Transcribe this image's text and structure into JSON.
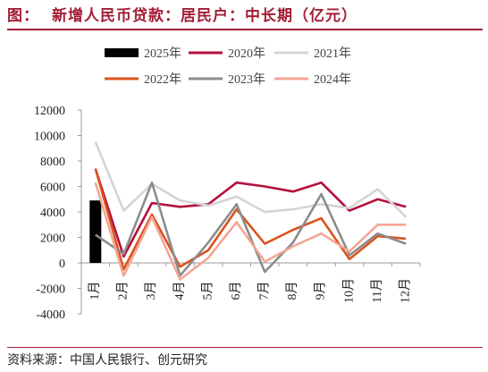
{
  "header": {
    "label": "图：",
    "title": "新增人民币贷款：居民户：中长期（亿元）"
  },
  "footer": {
    "source": "资料来源：中国人民银行、创元研究"
  },
  "chart_data": {
    "type": "line",
    "categories": [
      "1月",
      "2月",
      "3月",
      "4月",
      "5月",
      "6月",
      "7月",
      "8月",
      "9月",
      "10月",
      "11月",
      "12月"
    ],
    "ylim": [
      -4000,
      12000
    ],
    "yticks": [
      12000,
      10000,
      8000,
      6000,
      4000,
      2000,
      0,
      -2000,
      -4000
    ],
    "grid": false,
    "legend_position": "top",
    "series": [
      {
        "name": "2025年",
        "type": "bar",
        "color": "#000000",
        "values": [
          4900,
          null,
          null,
          null,
          null,
          null,
          null,
          null,
          null,
          null,
          null,
          null
        ]
      },
      {
        "name": "2020年",
        "type": "line",
        "color": "#b5103c",
        "values": [
          7400,
          500,
          4700,
          4400,
          4600,
          6300,
          6000,
          5600,
          6300,
          4100,
          5000,
          4400
        ]
      },
      {
        "name": "2021年",
        "type": "line",
        "color": "#d4d4d4",
        "values": [
          9500,
          4100,
          6200,
          4900,
          4500,
          5200,
          4000,
          4200,
          4600,
          4300,
          5800,
          3600
        ]
      },
      {
        "name": "2022年",
        "type": "line",
        "color": "#d9541e",
        "values": [
          7400,
          -500,
          3800,
          -300,
          1000,
          4200,
          1500,
          2600,
          3500,
          300,
          2100,
          1900
        ]
      },
      {
        "name": "2023年",
        "type": "line",
        "color": "#8c8c8c",
        "values": [
          2200,
          700,
          6300,
          -1000,
          1600,
          4600,
          -700,
          1600,
          5400,
          600,
          2300,
          1500
        ]
      },
      {
        "name": "2024年",
        "type": "line",
        "color": "#f4a594",
        "values": [
          6300,
          -1000,
          3600,
          -1300,
          400,
          3200,
          100,
          1300,
          2300,
          900,
          3000,
          3000
        ]
      }
    ]
  }
}
